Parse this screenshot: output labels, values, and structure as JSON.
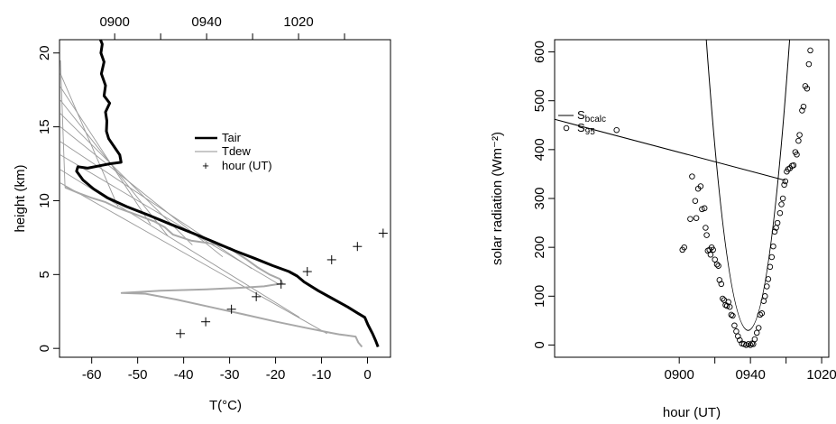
{
  "chart_data": [
    {
      "type": "line",
      "xlabel": "T(°C)",
      "ylabel": "height (km)",
      "x2label": "",
      "xlim": [
        -67,
        5
      ],
      "ylim": [
        -0.6,
        20.9
      ],
      "x_ticks": [
        -60,
        -50,
        -40,
        -30,
        -20,
        -10,
        0
      ],
      "y_ticks": [
        0,
        5,
        10,
        15,
        20
      ],
      "x2_ticks": [
        {
          "label": "0900",
          "x": -55
        },
        {
          "label": "0940",
          "x": -35
        },
        {
          "label": "1020",
          "x": -15
        }
      ],
      "legend": {
        "position": "center-right",
        "entries": [
          {
            "label": "Tair",
            "style": "thick-black-line"
          },
          {
            "label": "Tdew",
            "style": "thin-gray-line"
          },
          {
            "label": "hour (UT)",
            "style": "plus"
          }
        ]
      },
      "colors": {
        "tair": "#000000",
        "tdew": "#a8a8a8",
        "flight_lines": "#9a9a9a"
      },
      "series": [
        {
          "name": "Tair",
          "points": [
            [
              2.3,
              0.1
            ],
            [
              1.8,
              0.5
            ],
            [
              1.1,
              1.0
            ],
            [
              0.1,
              1.6
            ],
            [
              -0.6,
              2.1
            ],
            [
              -2.2,
              2.4
            ],
            [
              -4.3,
              2.8
            ],
            [
              -7.8,
              3.4
            ],
            [
              -10.7,
              3.9
            ],
            [
              -13.8,
              4.5
            ],
            [
              -15.3,
              4.9
            ],
            [
              -17.1,
              5.2
            ],
            [
              -20.6,
              5.6
            ],
            [
              -24.6,
              6.1
            ],
            [
              -28.8,
              6.6
            ],
            [
              -33.4,
              7.2
            ],
            [
              -38.0,
              7.8
            ],
            [
              -42.8,
              8.4
            ],
            [
              -47.5,
              9.0
            ],
            [
              -52.4,
              9.6
            ],
            [
              -56.6,
              10.2
            ],
            [
              -59.6,
              10.8
            ],
            [
              -61.9,
              11.4
            ],
            [
              -63.3,
              12.0
            ],
            [
              -63.0,
              12.3
            ],
            [
              -60.9,
              12.2
            ],
            [
              -57.7,
              12.4
            ],
            [
              -56.0,
              12.5
            ],
            [
              -53.6,
              12.6
            ],
            [
              -53.9,
              13.1
            ],
            [
              -55.0,
              13.6
            ],
            [
              -56.3,
              14.2
            ],
            [
              -56.8,
              14.7
            ],
            [
              -56.7,
              15.4
            ],
            [
              -57.0,
              16.0
            ],
            [
              -56.1,
              16.6
            ],
            [
              -57.3,
              17.1
            ],
            [
              -57.0,
              17.8
            ],
            [
              -57.9,
              18.6
            ],
            [
              -57.3,
              19.4
            ],
            [
              -58.0,
              20.0
            ],
            [
              -57.7,
              20.6
            ],
            [
              -58.1,
              20.9
            ]
          ]
        },
        {
          "name": "Tdew",
          "points": [
            [
              -1.2,
              0.1
            ],
            [
              -2.0,
              0.4
            ],
            [
              -2.6,
              0.8
            ],
            [
              -6.2,
              0.95
            ],
            [
              -7.9,
              1.05
            ],
            [
              -13.5,
              1.4
            ],
            [
              -19.8,
              1.8
            ],
            [
              -26.9,
              2.3
            ],
            [
              -34.2,
              2.8
            ],
            [
              -41.5,
              3.3
            ],
            [
              -48.3,
              3.7
            ],
            [
              -53.5,
              3.75
            ],
            [
              -45.0,
              3.9
            ],
            [
              -35.0,
              4.0
            ],
            [
              -28.1,
              4.1
            ],
            [
              -22.5,
              4.2
            ],
            [
              -18.5,
              4.4
            ],
            [
              -19.1,
              4.7
            ],
            [
              -21.3,
              5.0
            ],
            [
              -24.0,
              5.5
            ],
            [
              -26.2,
              6.0
            ],
            [
              -28.2,
              6.4
            ],
            [
              -30.0,
              6.8
            ],
            [
              -34.0,
              7.1
            ],
            [
              -38.4,
              7.3
            ],
            [
              -42.3,
              7.7
            ],
            [
              -44.1,
              8.2
            ],
            [
              -46.4,
              8.6
            ],
            [
              -50.7,
              9.1
            ],
            [
              -54.3,
              9.5
            ],
            [
              -57.0,
              9.9
            ],
            [
              -60.1,
              10.2
            ],
            [
              -62.7,
              10.5
            ],
            [
              -65.8,
              10.9
            ]
          ]
        },
        {
          "name": "hour (UT)",
          "points": [
            [
              -40.7,
              1.0
            ],
            [
              -35.2,
              1.8
            ],
            [
              -29.6,
              2.65
            ],
            [
              -24.2,
              3.5
            ],
            [
              -18.8,
              4.35
            ],
            [
              -13.1,
              5.2
            ],
            [
              -7.8,
              6.0
            ],
            [
              -2.2,
              6.9
            ],
            [
              3.4,
              7.8
            ]
          ]
        },
        {
          "name": "",
          "points": [
            [
              -65.8,
              10.9
            ],
            [
              -54.3,
              9.6
            ],
            [
              -47.2,
              8.4
            ],
            [
              -43.4,
              7.6
            ],
            [
              -38.1,
              7.0
            ],
            [
              -31.5,
              6.2
            ],
            [
              -25.2,
              5.4
            ],
            [
              -19.6,
              4.4
            ],
            [
              -14.8,
              2.1
            ],
            [
              -8.8,
              1.0
            ]
          ]
        },
        {
          "name": "",
          "points": [
            [
              -66.8,
              19.5
            ],
            [
              -66.8,
              18.6
            ],
            [
              -66.8,
              17.7
            ],
            [
              -66.8,
              16.8
            ],
            [
              -66.8,
              15.9
            ],
            [
              -66.8,
              15.0
            ],
            [
              -66.8,
              14.0
            ],
            [
              -66.8,
              13.1
            ],
            [
              -66.8,
              12.1
            ],
            [
              -66.8,
              11.2
            ]
          ]
        }
      ]
    },
    {
      "type": "scatter",
      "xlabel": "hour (UT)",
      "ylabel": "solar radiation (Wm⁻²)",
      "xlim": [
        -35,
        42
      ],
      "ylim": [
        -25,
        625
      ],
      "x_ticks": [
        {
          "label": "0900",
          "x": 0
        },
        {
          "label": "0940",
          "x": 20
        },
        {
          "label": "1020",
          "x": 40
        }
      ],
      "y_ticks": [
        0,
        100,
        200,
        300,
        400,
        500,
        600
      ],
      "legend": {
        "position": "top-left",
        "entries": [
          {
            "label": "S",
            "sub": "bcalc",
            "style": "line"
          },
          {
            "label": "S",
            "sub": "95",
            "style": "circle"
          }
        ]
      },
      "series": [
        {
          "name": "S95",
          "points": [
            [
              -17.6,
              440
            ],
            [
              0.9,
              195
            ],
            [
              1.4,
              200
            ],
            [
              3.1,
              258
            ],
            [
              3.6,
              345
            ],
            [
              4.5,
              295
            ],
            [
              4.8,
              260
            ],
            [
              5.3,
              320
            ],
            [
              6.0,
              325
            ],
            [
              6.4,
              278
            ],
            [
              7.1,
              280
            ],
            [
              7.4,
              240
            ],
            [
              7.7,
              225
            ],
            [
              8.0,
              193
            ],
            [
              8.5,
              195
            ],
            [
              8.8,
              185
            ],
            [
              9.1,
              200
            ],
            [
              9.5,
              195
            ],
            [
              10.0,
              175
            ],
            [
              10.6,
              165
            ],
            [
              11.0,
              162
            ],
            [
              11.3,
              133
            ],
            [
              11.8,
              125
            ],
            [
              12.2,
              95
            ],
            [
              12.6,
              92
            ],
            [
              13.0,
              82
            ],
            [
              13.4,
              80
            ],
            [
              13.8,
              88
            ],
            [
              14.2,
              78
            ],
            [
              14.6,
              62
            ],
            [
              15.0,
              60
            ],
            [
              15.5,
              40
            ],
            [
              16.0,
              28
            ],
            [
              16.5,
              18
            ],
            [
              17.0,
              10
            ],
            [
              17.6,
              3
            ],
            [
              18.2,
              2
            ],
            [
              18.8,
              0
            ],
            [
              19.4,
              2
            ],
            [
              20.0,
              0
            ],
            [
              20.4,
              3
            ],
            [
              20.8,
              2
            ],
            [
              21.2,
              12
            ],
            [
              21.8,
              25
            ],
            [
              22.3,
              35
            ],
            [
              22.7,
              62
            ],
            [
              23.2,
              65
            ],
            [
              23.7,
              90
            ],
            [
              24.1,
              100
            ],
            [
              24.6,
              120
            ],
            [
              25.0,
              135
            ],
            [
              25.5,
              160
            ],
            [
              26.0,
              180
            ],
            [
              26.4,
              202
            ],
            [
              26.8,
              232
            ],
            [
              27.2,
              240
            ],
            [
              27.6,
              250
            ],
            [
              28.3,
              270
            ],
            [
              28.7,
              288
            ],
            [
              29.1,
              300
            ],
            [
              29.5,
              328
            ],
            [
              29.8,
              335
            ],
            [
              30.2,
              355
            ],
            [
              30.6,
              360
            ],
            [
              31.1,
              362
            ],
            [
              31.7,
              367
            ],
            [
              32.1,
              368
            ],
            [
              32.6,
              395
            ],
            [
              33.0,
              390
            ],
            [
              33.5,
              418
            ],
            [
              33.8,
              430
            ],
            [
              34.5,
              480
            ],
            [
              34.9,
              488
            ],
            [
              35.4,
              530
            ],
            [
              35.9,
              525
            ],
            [
              36.4,
              575
            ],
            [
              36.8,
              603
            ]
          ]
        },
        {
          "name": "Sbcalc",
          "points": [
            [
              -35.0,
              462
            ],
            [
              29.8,
              337
            ]
          ]
        },
        {
          "name": "",
          "points": [
            [
              7.6,
              625
            ],
            [
              19.4,
              30
            ],
            [
              31.0,
              625
            ]
          ]
        }
      ]
    }
  ]
}
